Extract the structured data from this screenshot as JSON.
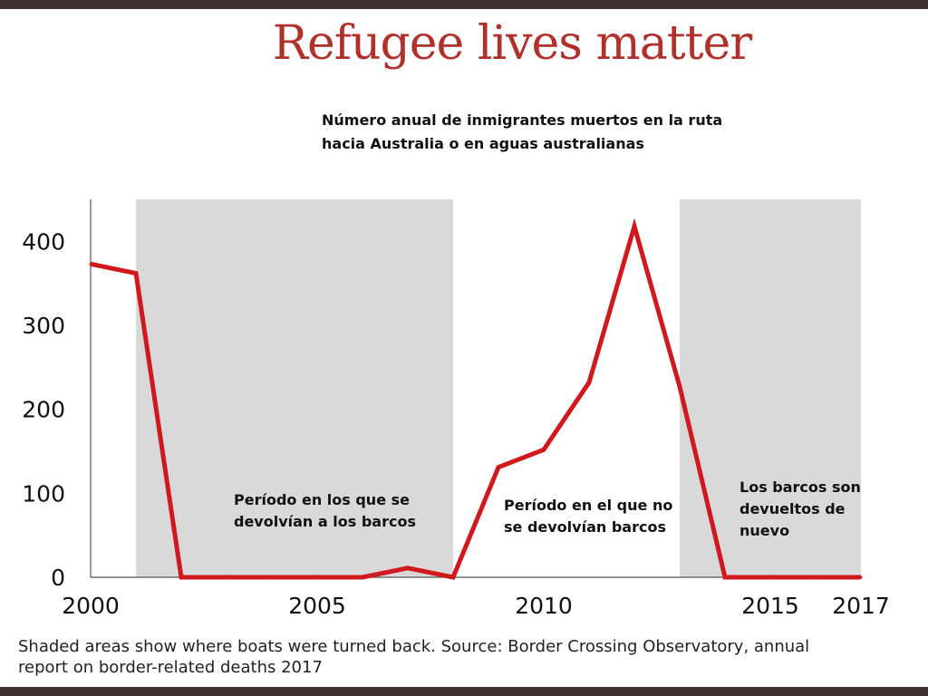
{
  "header": {
    "title": "Refugee lives matter",
    "subtitle_lines": [
      "Número anual de inmigrantes muertos en la ruta",
      "hacia Australia o en aguas australianas"
    ]
  },
  "caption": {
    "lines": [
      "Shaded areas show where boats were turned back. Source: Border Crossing Observatory, annual",
      "report on border-related deaths 2017"
    ]
  },
  "annotations": {
    "period_turned_back": [
      "Período en los que se",
      "devolvían a los barcos"
    ],
    "period_not_turned_back": [
      "Período en el que no",
      "se devolvían barcos"
    ],
    "period_turned_back_again": [
      "Los barcos son",
      "devueltos de",
      "nuevo"
    ]
  },
  "chart_data": {
    "type": "line",
    "title": "Refugee lives matter",
    "subtitle": "Número anual de inmigrantes muertos en la ruta hacia Australia o en aguas australianas",
    "xlabel": "",
    "ylabel": "",
    "x": [
      2000,
      2001,
      2002,
      2003,
      2004,
      2005,
      2006,
      2007,
      2008,
      2009,
      2010,
      2011,
      2012,
      2013,
      2014,
      2015,
      2016,
      2017
    ],
    "series": [
      {
        "name": "Deaths",
        "color": "#d0191d",
        "values": [
          373,
          362,
          0,
          0,
          0,
          0,
          0,
          11,
          0,
          131,
          152,
          232,
          418,
          227,
          0,
          0,
          0,
          0
        ]
      }
    ],
    "xlim": [
      2000,
      2017
    ],
    "ylim": [
      0,
      450
    ],
    "xticks": [
      2000,
      2005,
      2010,
      2015,
      2017
    ],
    "yticks": [
      0,
      100,
      200,
      300,
      400
    ],
    "shaded_ranges": [
      [
        2001,
        2008
      ],
      [
        2013,
        2017
      ]
    ],
    "shade_color": "#d9d9d9",
    "grid": false
  }
}
